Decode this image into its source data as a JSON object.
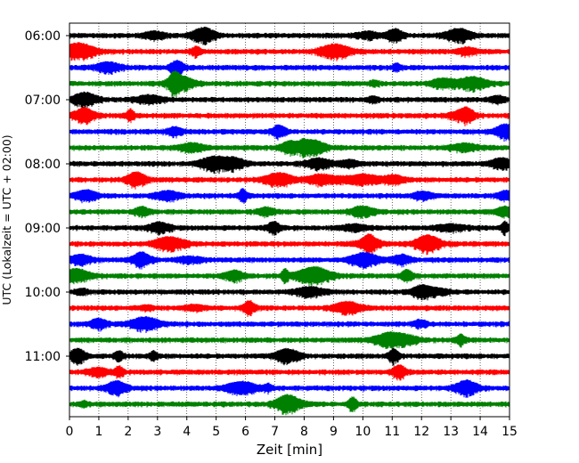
{
  "chart_data": {
    "type": "line",
    "subtype": "helicorder",
    "xlabel": "Zeit  [min]",
    "ylabel": "UTC (Lokalzeit = UTC + 02:00)",
    "xlim": [
      0,
      15
    ],
    "x_ticks": [
      0,
      1,
      2,
      3,
      4,
      5,
      6,
      7,
      8,
      9,
      10,
      11,
      12,
      13,
      14,
      15
    ],
    "y_tick_labels": [
      "06:00",
      "07:00",
      "08:00",
      "09:00",
      "10:00",
      "11:00"
    ],
    "trace_interval_min": 15,
    "trace_start_times": [
      "06:00",
      "06:15",
      "06:30",
      "06:45",
      "07:00",
      "07:15",
      "07:30",
      "07:45",
      "08:00",
      "08:15",
      "08:30",
      "08:45",
      "09:00",
      "09:15",
      "09:30",
      "09:45",
      "10:00",
      "10:15",
      "10:30",
      "10:45",
      "11:00",
      "11:15",
      "11:30",
      "11:45"
    ],
    "trace_colors": [
      "#000000",
      "#ff0000",
      "#0000ff",
      "#008000"
    ],
    "grid": "vertical dotted lines at each minute"
  }
}
